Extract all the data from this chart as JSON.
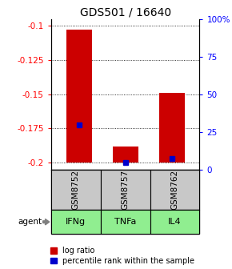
{
  "title": "GDS501 / 16640",
  "samples": [
    "GSM8752",
    "GSM8757",
    "GSM8762"
  ],
  "agents": [
    "IFNg",
    "TNFa",
    "IL4"
  ],
  "log_ratio_values": [
    -0.103,
    -0.188,
    -0.149
  ],
  "log_ratio_base": -0.2,
  "percentile_values": [
    32,
    5,
    8
  ],
  "ylim_left": [
    -0.205,
    -0.095
  ],
  "ylim_right": [
    0,
    109.09
  ],
  "yticks_left": [
    -0.2,
    -0.175,
    -0.15,
    -0.125,
    -0.1
  ],
  "yticks_right": [
    0,
    25,
    50,
    75,
    100
  ],
  "ytick_labels_left": [
    "-0.2",
    "-0.175",
    "-0.15",
    "-0.125",
    "-0.1"
  ],
  "ytick_labels_right": [
    "0",
    "25",
    "50",
    "75",
    "100%"
  ],
  "bar_color": "#cc0000",
  "percentile_color": "#0000cc",
  "sample_bg_color": "#c8c8c8",
  "agent_bg_color": "#90ee90",
  "bar_width": 0.55,
  "title_fontsize": 10,
  "tick_fontsize": 7.5,
  "sample_fontsize": 7.5,
  "agent_fontsize": 8,
  "legend_fontsize": 7
}
